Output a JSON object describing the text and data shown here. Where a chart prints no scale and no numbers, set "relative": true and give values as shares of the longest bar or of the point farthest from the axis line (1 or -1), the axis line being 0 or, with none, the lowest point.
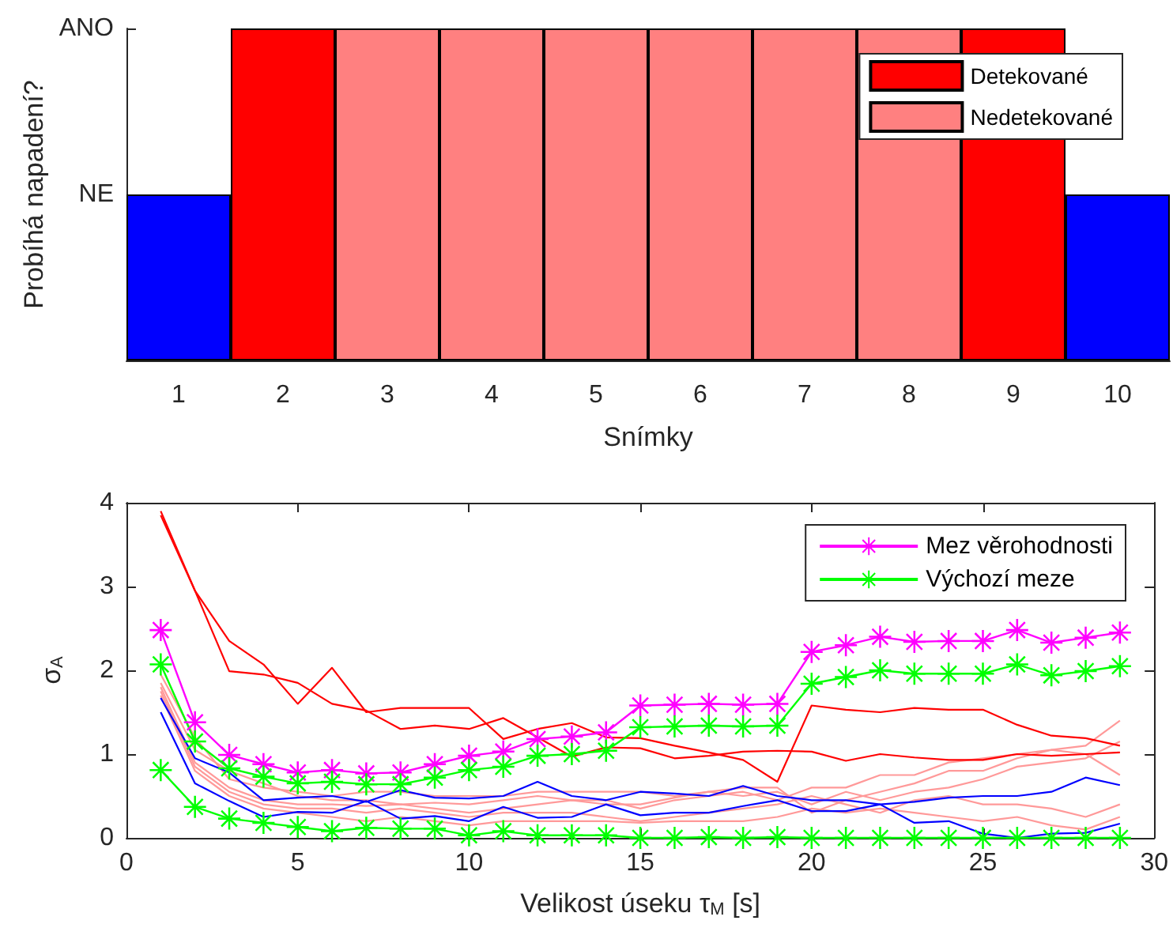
{
  "chart_data": [
    {
      "type": "bar",
      "xlabel": "Snímky",
      "ylabel": "Probíhá napadení?",
      "categories": [
        "1",
        "2",
        "3",
        "4",
        "5",
        "6",
        "7",
        "8",
        "9",
        "10"
      ],
      "stacked": true,
      "relative": true,
      "annotations": [
        "NE",
        "ANO"
      ],
      "grid": false,
      "legend": "top right",
      "series": [
        {
          "name": "Detekované",
          "color": "#ff0000",
          "values": [
            null,
            1,
            null,
            null,
            null,
            null,
            null,
            null,
            1,
            null
          ]
        },
        {
          "name": "Nedetekované",
          "color": "#ff8080",
          "values": [
            null,
            null,
            1,
            1,
            1,
            1,
            1,
            1,
            null,
            null
          ]
        },
        {
          "color": "#0000ff",
          "values": [
            0.5,
            null,
            null,
            null,
            null,
            null,
            null,
            null,
            null,
            0.5
          ]
        }
      ]
    },
    {
      "type": "line",
      "xlabel": "Velikost úseku τ$_{M}$ [s]",
      "ylabel": "σ$_{A}$",
      "xlim": [
        0,
        30
      ],
      "xticks": [
        0,
        5,
        10,
        15,
        20,
        25,
        30
      ],
      "ylim": [
        0,
        4
      ],
      "yticks": [
        0,
        1,
        2,
        3,
        4
      ],
      "grid": false,
      "legend": "top right",
      "line_style": "solid",
      "x": [
        1,
        2,
        3,
        4,
        5,
        6,
        7,
        8,
        9,
        10,
        11,
        12,
        13,
        14,
        15,
        16,
        17,
        18,
        19,
        20,
        21,
        22,
        23,
        24,
        25,
        26,
        27,
        28,
        29
      ],
      "series": [
        {
          "color": "#ff9999",
          "marker": "none",
          "values": [
            1.95,
            1.2,
            0.7,
            0.6,
            0.55,
            0.5,
            0.55,
            0.55,
            0.5,
            0.5,
            0.5,
            0.55,
            0.55,
            0.55,
            0.55,
            0.5,
            0.55,
            0.6,
            0.6,
            0.3,
            0.45,
            0.55,
            0.65,
            0.8,
            0.8,
            0.95,
            1.05,
            1.1,
            1.4
          ]
        },
        {
          "color": "#ff9999",
          "marker": "none",
          "values": [
            1.85,
            1.05,
            0.8,
            0.65,
            0.5,
            0.45,
            0.45,
            0.4,
            0.42,
            0.4,
            0.45,
            0.5,
            0.45,
            0.45,
            0.35,
            0.45,
            0.5,
            0.55,
            0.45,
            0.6,
            0.6,
            0.75,
            0.75,
            0.9,
            0.95,
            1.0,
            1.05,
            1.0,
            0.75
          ]
        },
        {
          "color": "#ff9999",
          "marker": "none",
          "values": [
            1.8,
            0.9,
            0.6,
            0.45,
            0.4,
            0.4,
            0.38,
            0.4,
            0.35,
            0.3,
            0.35,
            0.4,
            0.45,
            0.4,
            0.4,
            0.48,
            0.55,
            0.5,
            0.55,
            0.4,
            0.55,
            0.45,
            0.55,
            0.6,
            0.7,
            0.85,
            0.9,
            0.95,
            1.15
          ]
        },
        {
          "color": "#ff9999",
          "marker": "none",
          "values": [
            1.75,
            0.85,
            0.55,
            0.4,
            0.35,
            0.35,
            0.3,
            0.35,
            0.3,
            0.25,
            0.3,
            0.3,
            0.3,
            0.25,
            0.2,
            0.25,
            0.3,
            0.35,
            0.4,
            0.5,
            0.4,
            0.3,
            0.45,
            0.5,
            0.4,
            0.4,
            0.35,
            0.25,
            0.4
          ]
        },
        {
          "color": "#ff9999",
          "marker": "none",
          "values": [
            1.7,
            0.8,
            0.5,
            0.35,
            0.3,
            0.25,
            0.2,
            0.25,
            0.2,
            0.15,
            0.2,
            0.2,
            0.2,
            0.2,
            0.18,
            0.2,
            0.2,
            0.2,
            0.25,
            0.35,
            0.3,
            0.35,
            0.3,
            0.25,
            0.2,
            0.25,
            0.15,
            0.1,
            0.25
          ]
        },
        {
          "color": "#0000ff",
          "marker": "none",
          "values": [
            1.67,
            0.95,
            0.78,
            0.45,
            0.48,
            0.5,
            0.43,
            0.57,
            0.48,
            0.47,
            0.5,
            0.67,
            0.5,
            0.45,
            0.55,
            0.53,
            0.5,
            0.62,
            0.5,
            0.45,
            0.45,
            0.4,
            0.43,
            0.48,
            0.5,
            0.5,
            0.55,
            0.72,
            0.63
          ]
        },
        {
          "color": "#0000ff",
          "marker": "none",
          "values": [
            1.5,
            0.65,
            0.44,
            0.25,
            0.31,
            0.3,
            0.44,
            0.23,
            0.26,
            0.2,
            0.37,
            0.24,
            0.25,
            0.4,
            0.27,
            0.3,
            0.3,
            0.38,
            0.45,
            0.32,
            0.32,
            0.4,
            0.18,
            0.2,
            0.05,
            0.0,
            0.05,
            0.06,
            0.17
          ]
        },
        {
          "color": "#ff0000",
          "marker": "none",
          "values": [
            3.9,
            2.95,
            2.35,
            2.07,
            1.6,
            2.03,
            1.5,
            1.55,
            1.55,
            1.55,
            1.18,
            1.3,
            1.37,
            1.2,
            1.19,
            1.1,
            1.02,
            0.93,
            0.67,
            1.58,
            1.53,
            1.5,
            1.55,
            1.53,
            1.53,
            1.35,
            1.22,
            1.19,
            1.1
          ]
        },
        {
          "color": "#ff0000",
          "marker": "none",
          "values": [
            3.85,
            2.95,
            1.99,
            1.95,
            1.85,
            1.6,
            1.52,
            1.3,
            1.34,
            1.3,
            1.43,
            1.2,
            0.97,
            1.08,
            1.07,
            0.95,
            0.98,
            1.03,
            1.04,
            1.03,
            0.92,
            1.0,
            0.96,
            0.93,
            0.93,
            1.0,
            0.98,
            1.0,
            1.02
          ]
        },
        {
          "name": "Mez věrohodnosti",
          "color": "#ff00ff",
          "marker": "star",
          "values": [
            2.48,
            1.38,
            0.99,
            0.88,
            0.78,
            0.81,
            0.77,
            0.78,
            0.88,
            0.98,
            1.03,
            1.18,
            1.21,
            1.26,
            1.58,
            1.59,
            1.6,
            1.59,
            1.6,
            2.22,
            2.3,
            2.4,
            2.34,
            2.35,
            2.35,
            2.48,
            2.33,
            2.39,
            2.45
          ]
        },
        {
          "name": "Výchozí meze",
          "color": "#00ff00",
          "marker": "star",
          "values": [
            2.07,
            1.15,
            0.83,
            0.73,
            0.65,
            0.67,
            0.64,
            0.64,
            0.72,
            0.81,
            0.85,
            0.98,
            1.0,
            1.04,
            1.32,
            1.33,
            1.34,
            1.33,
            1.34,
            1.84,
            1.92,
            2.0,
            1.96,
            1.96,
            1.96,
            2.07,
            1.94,
            1.99,
            2.05
          ]
        },
        {
          "color": "#00ff00",
          "marker": "star",
          "values": [
            0.81,
            0.37,
            0.23,
            0.18,
            0.13,
            0.08,
            0.12,
            0.11,
            0.11,
            0.03,
            0.08,
            0.03,
            0.03,
            0.03,
            0.0,
            0.0,
            0.01,
            0.0,
            0.01,
            0.0,
            0.0,
            0.0,
            0.0,
            0.0,
            0.0,
            0.0,
            0.0,
            0.0,
            0.0
          ]
        }
      ]
    }
  ]
}
